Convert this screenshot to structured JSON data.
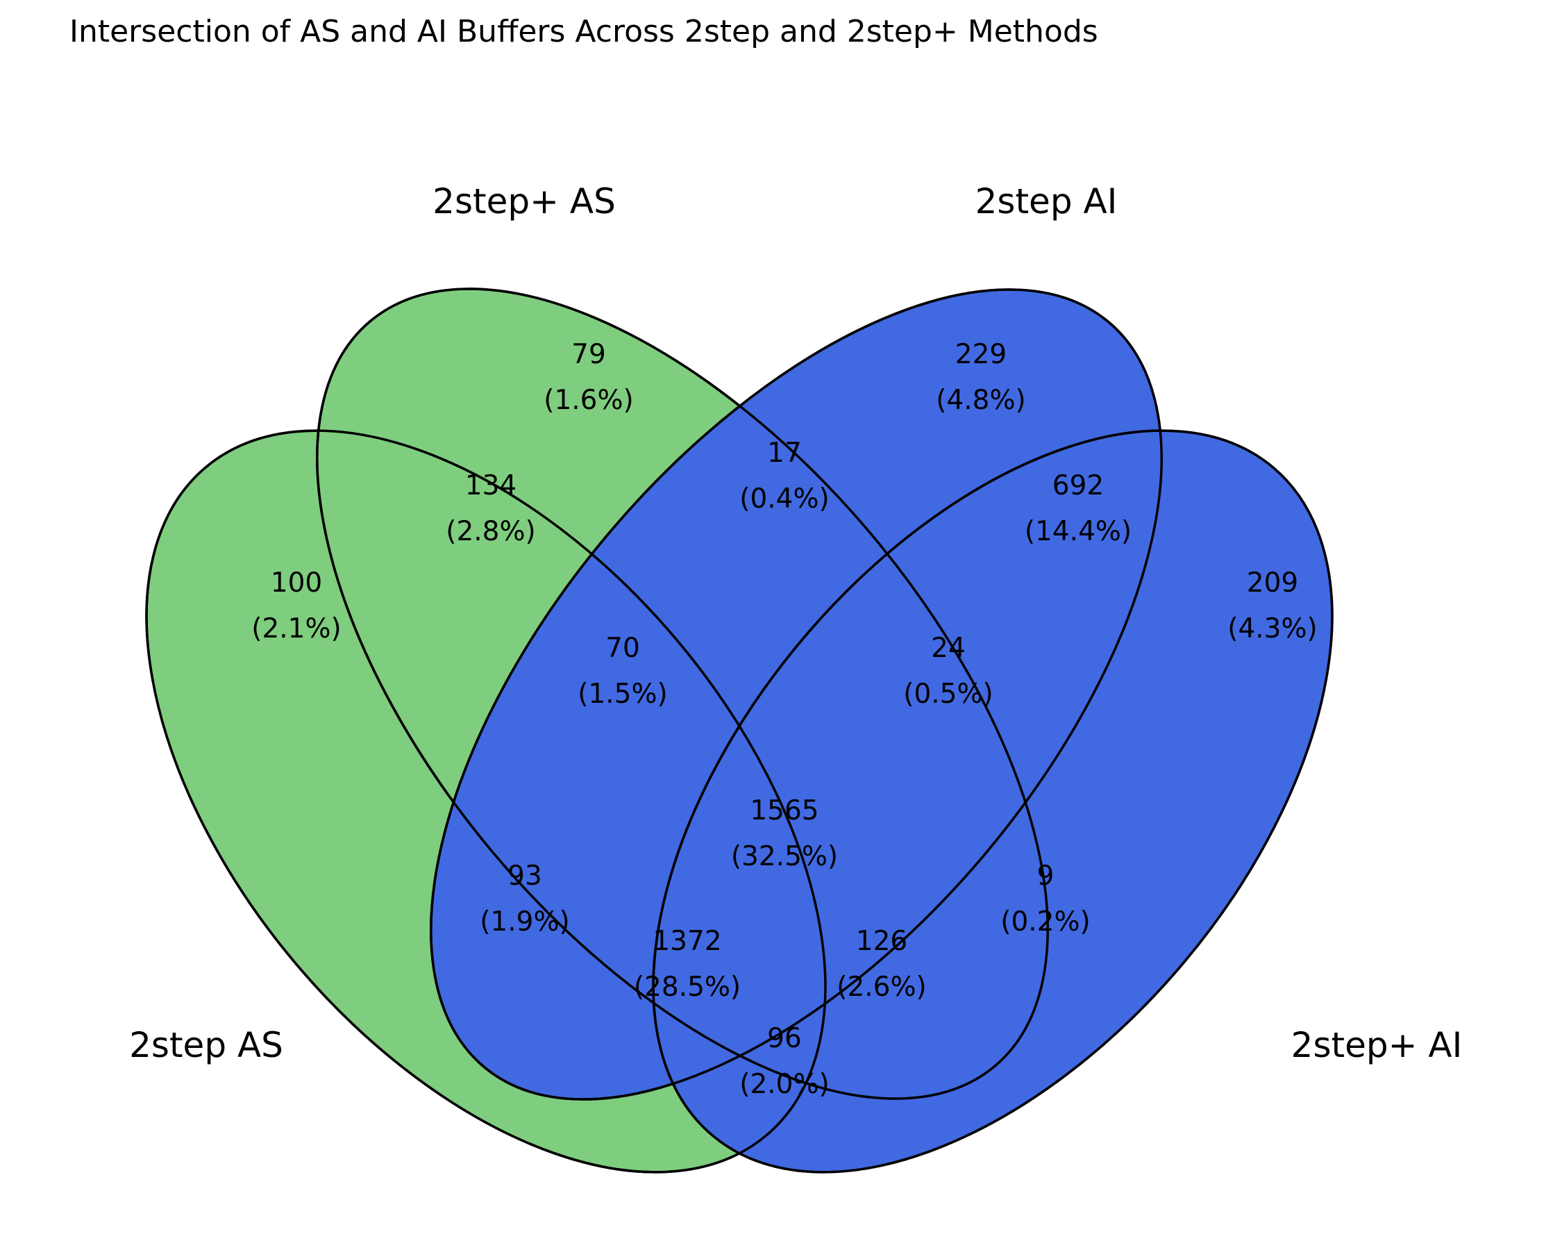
{
  "title": "Intersection of AS and AI Buffers Across 2step and 2step+ Methods",
  "colors": {
    "as_fill": "#7fcd7f",
    "ai_fill": "#4169e1",
    "outline": "#000000"
  },
  "sets": {
    "s2step_as": "2step AS",
    "s2stepplus_as": "2step+ AS",
    "s2step_ai": "2step AI",
    "s2stepplus_ai": "2step+ AI"
  },
  "regions": {
    "as_only": {
      "count": "100",
      "pct": "(2.1%)"
    },
    "asplus_only": {
      "count": "79",
      "pct": "(1.6%)"
    },
    "ai_only": {
      "count": "229",
      "pct": "(4.8%)"
    },
    "aiplus_only": {
      "count": "209",
      "pct": "(4.3%)"
    },
    "as_asplus": {
      "count": "134",
      "pct": "(2.8%)"
    },
    "asplus_ai": {
      "count": "17",
      "pct": "(0.4%)"
    },
    "ai_aiplus": {
      "count": "692",
      "pct": "(14.4%)"
    },
    "as_asplus_ai": {
      "count": "70",
      "pct": "(1.5%)"
    },
    "asplus_ai_aiplus": {
      "count": "24",
      "pct": "(0.5%)"
    },
    "as_ai": {
      "count": "93",
      "pct": "(1.9%)"
    },
    "all_four": {
      "count": "1565",
      "pct": "(32.5%)"
    },
    "asplus_aiplus": {
      "count": "9",
      "pct": "(0.2%)"
    },
    "as_ai_aiplus": {
      "count": "1372",
      "pct": "(28.5%)"
    },
    "as_asplus_aiplus": {
      "count": "126",
      "pct": "(2.6%)"
    },
    "as_aiplus": {
      "count": "96",
      "pct": "(2.0%)"
    }
  }
}
